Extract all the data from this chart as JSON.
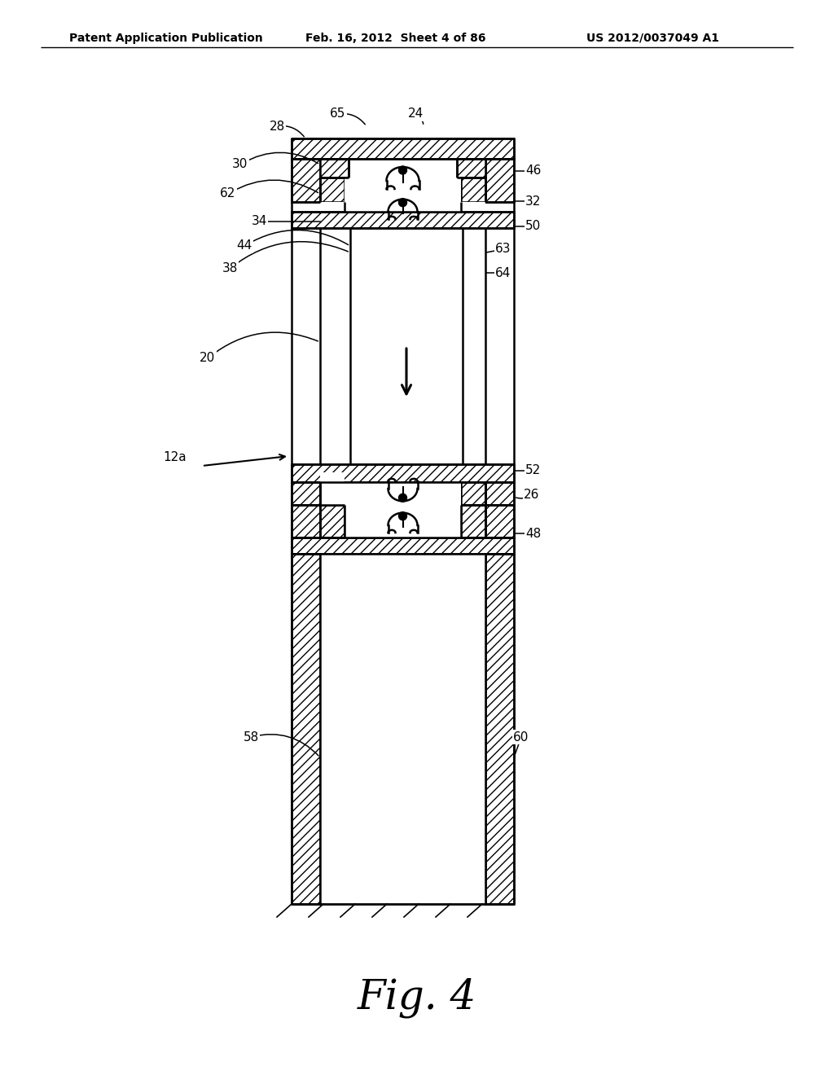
{
  "title": "Fig. 4",
  "header_left": "Patent Application Publication",
  "header_mid": "Feb. 16, 2012  Sheet 4 of 86",
  "header_right": "US 2012/0037049 A1",
  "bg_color": "#ffffff"
}
